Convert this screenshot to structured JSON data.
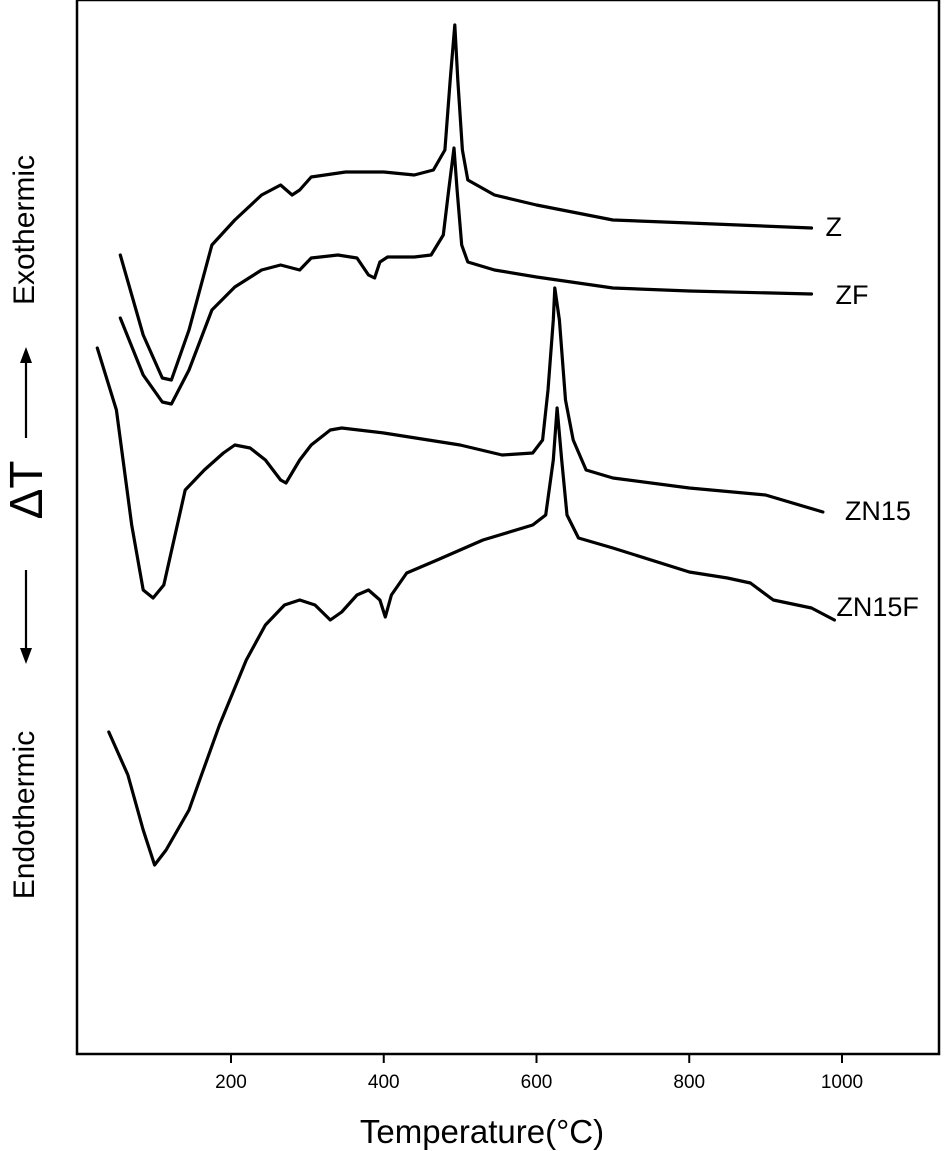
{
  "chart_data": {
    "type": "line",
    "xlabel": "Temperature(°C)",
    "ylabel": "ΔT",
    "y_top_label": "Exothermic",
    "y_bottom_label": "Endothermic",
    "xlim": [
      0,
      1150
    ],
    "x_ticks": [
      200,
      400,
      600,
      800,
      1000
    ],
    "y_axis_values": "none",
    "grid": false,
    "legend": "labels at right end of each curve",
    "series": [
      {
        "name": "Z",
        "points": [
          [
            55,
            255
          ],
          [
            85,
            335
          ],
          [
            110,
            378
          ],
          [
            122,
            380
          ],
          [
            145,
            330
          ],
          [
            175,
            245
          ],
          [
            205,
            220
          ],
          [
            240,
            195
          ],
          [
            265,
            185
          ],
          [
            280,
            195
          ],
          [
            290,
            190
          ],
          [
            305,
            177
          ],
          [
            350,
            172
          ],
          [
            400,
            172
          ],
          [
            440,
            175
          ],
          [
            465,
            170
          ],
          [
            480,
            150
          ],
          [
            487,
            80
          ],
          [
            493,
            25
          ],
          [
            497,
            80
          ],
          [
            503,
            150
          ],
          [
            510,
            180
          ],
          [
            545,
            195
          ],
          [
            600,
            205
          ],
          [
            700,
            220
          ],
          [
            800,
            223
          ],
          [
            960,
            228
          ]
        ]
      },
      {
        "name": "ZF",
        "points": [
          [
            55,
            318
          ],
          [
            85,
            375
          ],
          [
            110,
            402
          ],
          [
            122,
            404
          ],
          [
            145,
            370
          ],
          [
            175,
            310
          ],
          [
            205,
            287
          ],
          [
            240,
            270
          ],
          [
            265,
            265
          ],
          [
            280,
            268
          ],
          [
            290,
            270
          ],
          [
            305,
            258
          ],
          [
            340,
            255
          ],
          [
            365,
            258
          ],
          [
            380,
            275
          ],
          [
            388,
            278
          ],
          [
            395,
            262
          ],
          [
            405,
            257
          ],
          [
            440,
            257
          ],
          [
            462,
            255
          ],
          [
            478,
            235
          ],
          [
            485,
            190
          ],
          [
            492,
            148
          ],
          [
            496,
            190
          ],
          [
            502,
            245
          ],
          [
            510,
            262
          ],
          [
            545,
            270
          ],
          [
            600,
            277
          ],
          [
            700,
            288
          ],
          [
            800,
            291
          ],
          [
            960,
            294
          ]
        ]
      },
      {
        "name": "ZN15",
        "points": [
          [
            25,
            348
          ],
          [
            50,
            410
          ],
          [
            70,
            525
          ],
          [
            85,
            590
          ],
          [
            98,
            598
          ],
          [
            112,
            585
          ],
          [
            140,
            490
          ],
          [
            165,
            470
          ],
          [
            190,
            453
          ],
          [
            205,
            445
          ],
          [
            225,
            448
          ],
          [
            245,
            460
          ],
          [
            265,
            480
          ],
          [
            272,
            483
          ],
          [
            290,
            460
          ],
          [
            305,
            445
          ],
          [
            330,
            430
          ],
          [
            345,
            428
          ],
          [
            400,
            433
          ],
          [
            500,
            445
          ],
          [
            555,
            455
          ],
          [
            595,
            453
          ],
          [
            608,
            440
          ],
          [
            615,
            390
          ],
          [
            622,
            320
          ],
          [
            624,
            288
          ],
          [
            630,
            320
          ],
          [
            638,
            400
          ],
          [
            648,
            440
          ],
          [
            665,
            470
          ],
          [
            700,
            478
          ],
          [
            800,
            488
          ],
          [
            900,
            495
          ],
          [
            975,
            512
          ]
        ]
      },
      {
        "name": "ZN15F",
        "points": [
          [
            40,
            732
          ],
          [
            65,
            775
          ],
          [
            85,
            830
          ],
          [
            100,
            865
          ],
          [
            115,
            850
          ],
          [
            145,
            810
          ],
          [
            160,
            778
          ],
          [
            185,
            725
          ],
          [
            220,
            660
          ],
          [
            245,
            625
          ],
          [
            270,
            605
          ],
          [
            290,
            600
          ],
          [
            310,
            605
          ],
          [
            330,
            620
          ],
          [
            345,
            612
          ],
          [
            365,
            595
          ],
          [
            380,
            590
          ],
          [
            395,
            600
          ],
          [
            402,
            617
          ],
          [
            410,
            595
          ],
          [
            430,
            573
          ],
          [
            470,
            560
          ],
          [
            530,
            540
          ],
          [
            595,
            525
          ],
          [
            612,
            515
          ],
          [
            622,
            460
          ],
          [
            627,
            408
          ],
          [
            633,
            460
          ],
          [
            640,
            515
          ],
          [
            655,
            538
          ],
          [
            700,
            548
          ],
          [
            800,
            572
          ],
          [
            850,
            578
          ],
          [
            880,
            583
          ],
          [
            910,
            600
          ],
          [
            960,
            608
          ],
          [
            990,
            620
          ]
        ]
      }
    ]
  }
}
